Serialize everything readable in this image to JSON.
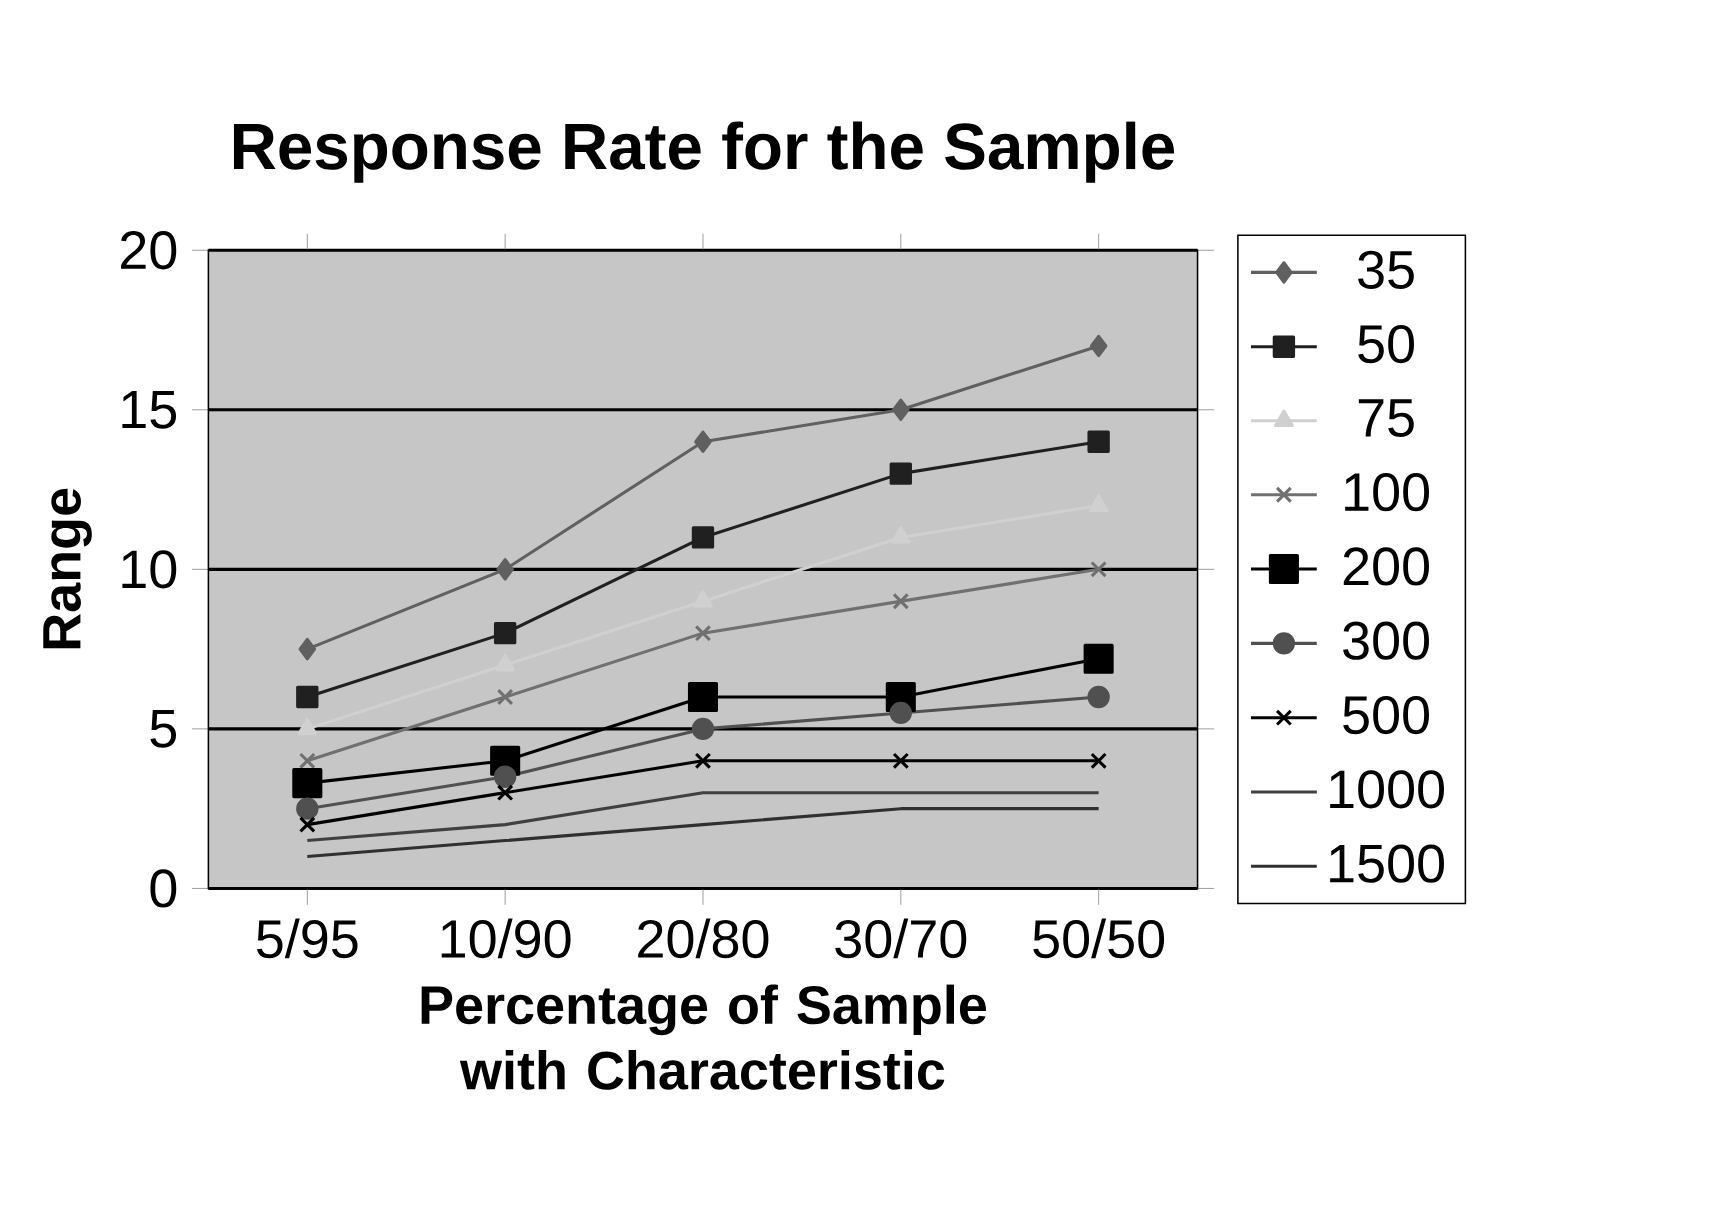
{
  "chart_data": {
    "type": "line",
    "title": "Response Rate for the Sample",
    "xlabel": "Percentage of Sample with Characteristic",
    "ylabel": "Range",
    "categories": [
      "5/95",
      "10/90",
      "20/80",
      "30/70",
      "50/50"
    ],
    "ylim": [
      0,
      20
    ],
    "yticks": [
      0,
      5,
      10,
      15,
      20
    ],
    "grid": "y",
    "legend": "right",
    "series": [
      {
        "name": "35",
        "color": "#606060",
        "marker": "diamond",
        "values": [
          7.5,
          10,
          14,
          15,
          17
        ]
      },
      {
        "name": "50",
        "color": "#202020",
        "marker": "square",
        "values": [
          6,
          8,
          11,
          13,
          14
        ]
      },
      {
        "name": "75",
        "color": "#d0d0d0",
        "marker": "triangle",
        "values": [
          5,
          7,
          9,
          11,
          12
        ]
      },
      {
        "name": "100",
        "color": "#707070",
        "marker": "cross",
        "values": [
          4,
          6,
          8,
          9,
          10
        ]
      },
      {
        "name": "200",
        "color": "#000000",
        "marker": "square",
        "values": [
          3.3,
          4,
          6,
          6,
          7.2
        ]
      },
      {
        "name": "300",
        "color": "#505050",
        "marker": "circle",
        "values": [
          2.5,
          3.5,
          5,
          5.5,
          6
        ]
      },
      {
        "name": "500",
        "color": "#000000",
        "marker": "cross",
        "values": [
          2,
          3,
          4,
          4,
          4
        ]
      },
      {
        "name": "1000",
        "color": "#404040",
        "marker": "none",
        "values": [
          1.5,
          2,
          3,
          3,
          3
        ]
      },
      {
        "name": "1500",
        "color": "#303030",
        "marker": "none",
        "values": [
          1,
          1.5,
          2,
          2.5,
          2.5
        ]
      }
    ]
  }
}
